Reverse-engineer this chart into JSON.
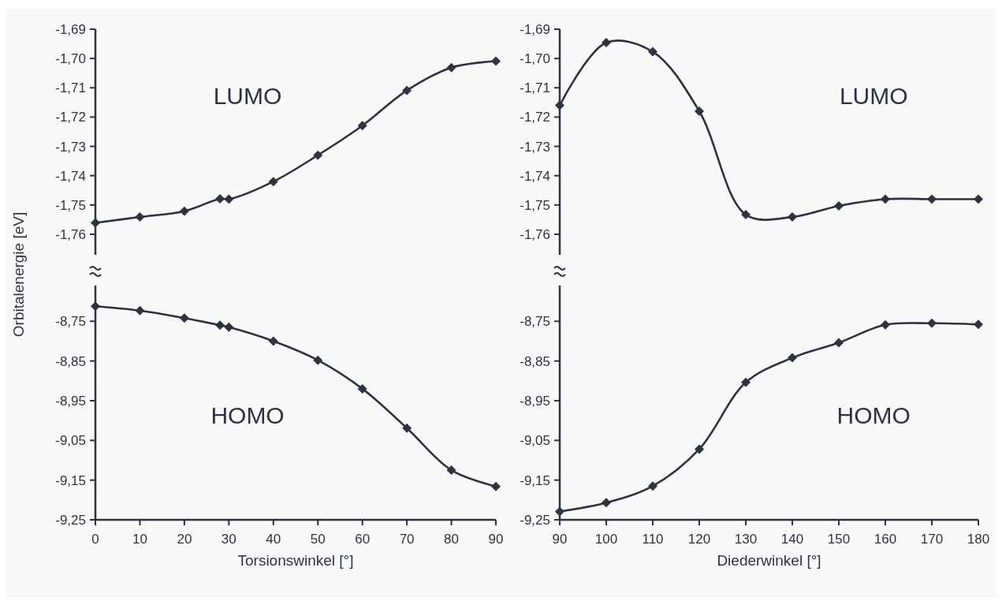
{
  "chart_data": [
    {
      "type": "line",
      "ylabel": "Orbitalenergie [eV]",
      "annotations": [
        "LUMO"
      ],
      "x": [
        0,
        10,
        20,
        28,
        30,
        40,
        50,
        60,
        70,
        80,
        90
      ],
      "series": [
        {
          "color": "#2d3340",
          "values": [
            -1.7561,
            -1.7541,
            -1.7521,
            -1.7479,
            -1.748,
            -1.742,
            -1.733,
            -1.7229,
            -1.7109,
            -1.7031,
            -1.7009
          ]
        }
      ],
      "xlim": [
        0,
        90
      ],
      "ylim": [
        -1.767,
        -1.69
      ],
      "yticks": [
        {
          "value": -1.69,
          "label": "-1,69"
        },
        {
          "value": -1.7,
          "label": "-1,70"
        },
        {
          "value": -1.71,
          "label": "-1,71"
        },
        {
          "value": -1.72,
          "label": "-1,72"
        },
        {
          "value": -1.73,
          "label": "-1,73"
        },
        {
          "value": -1.74,
          "label": "-1,74"
        },
        {
          "value": -1.75,
          "label": "-1,75"
        },
        {
          "value": -1.76,
          "label": "-1,76"
        }
      ],
      "tick_labels": "y",
      "marker": "diamond"
    },
    {
      "type": "line",
      "annotations": [
        "LUMO"
      ],
      "x": [
        90,
        100,
        110,
        120,
        130,
        140,
        150,
        160,
        170,
        180
      ],
      "series": [
        {
          "color": "#2d3340",
          "values": [
            -1.716,
            -1.6946,
            -1.6977,
            -1.718,
            -1.7533,
            -1.7541,
            -1.7503,
            -1.748,
            -1.748,
            -1.748
          ]
        }
      ],
      "xlim": [
        90,
        180
      ],
      "ylim": [
        -1.767,
        -1.69
      ],
      "yticks": [
        {
          "value": -1.69,
          "label": "-1,69"
        },
        {
          "value": -1.7,
          "label": "-1,70"
        },
        {
          "value": -1.71,
          "label": "-1,71"
        },
        {
          "value": -1.72,
          "label": "-1,72"
        },
        {
          "value": -1.73,
          "label": "-1,73"
        },
        {
          "value": -1.74,
          "label": "-1,74"
        },
        {
          "value": -1.75,
          "label": "-1,75"
        },
        {
          "value": -1.76,
          "label": "-1,76"
        }
      ],
      "tick_labels": "y",
      "marker": "diamond"
    },
    {
      "type": "line",
      "xlabel": "Torsionswinkel [°]",
      "annotations": [
        "HOMO"
      ],
      "x": [
        0,
        10,
        20,
        28,
        30,
        40,
        50,
        60,
        70,
        80,
        90
      ],
      "series": [
        {
          "color": "#2d3340",
          "values": [
            -8.712,
            -8.723,
            -8.742,
            -8.76,
            -8.765,
            -8.8,
            -8.848,
            -8.92,
            -9.019,
            -9.125,
            -9.166
          ]
        }
      ],
      "xlim": [
        0,
        90
      ],
      "xticks": [
        0,
        10,
        20,
        30,
        40,
        50,
        60,
        70,
        80,
        90
      ],
      "ylim": [
        -9.25,
        -8.66
      ],
      "yticks": [
        {
          "value": -8.75,
          "label": "-8,75"
        },
        {
          "value": -8.85,
          "label": "-8,85"
        },
        {
          "value": -8.95,
          "label": "-8,95"
        },
        {
          "value": -9.05,
          "label": "-9,05"
        },
        {
          "value": -9.15,
          "label": "-9,15"
        },
        {
          "value": -9.25,
          "label": "-9,25"
        }
      ],
      "marker": "diamond"
    },
    {
      "type": "line",
      "xlabel": "Diederwinkel [°]",
      "annotations": [
        "HOMO"
      ],
      "x": [
        90,
        100,
        110,
        120,
        130,
        140,
        150,
        160,
        170,
        180
      ],
      "series": [
        {
          "color": "#2d3340",
          "values": [
            -9.229,
            -9.207,
            -9.165,
            -9.072,
            -8.904,
            -8.842,
            -8.804,
            -8.759,
            -8.755,
            -8.758
          ]
        }
      ],
      "xlim": [
        90,
        180
      ],
      "xticks": [
        90,
        100,
        110,
        120,
        130,
        140,
        150,
        160,
        170,
        180
      ],
      "ylim": [
        -9.25,
        -8.66
      ],
      "yticks": [
        {
          "value": -8.75,
          "label": "-8,75"
        },
        {
          "value": -8.85,
          "label": "-8,85"
        },
        {
          "value": -8.95,
          "label": "-8,95"
        },
        {
          "value": -9.05,
          "label": "-9,05"
        },
        {
          "value": -9.15,
          "label": "-9,15"
        },
        {
          "value": -9.25,
          "label": "-9,25"
        }
      ],
      "marker": "diamond"
    }
  ]
}
